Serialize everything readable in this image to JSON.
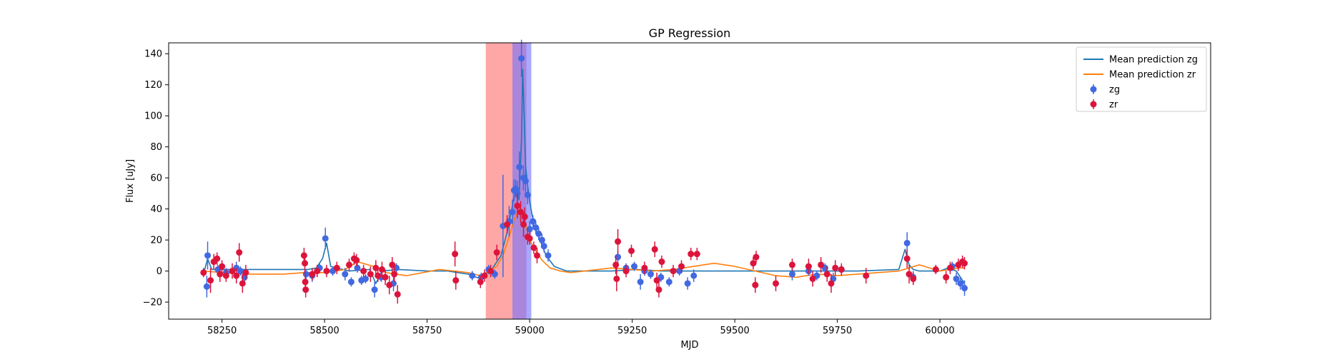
{
  "chart_data": {
    "type": "scatter",
    "title": "GP Regression",
    "xlabel": "MJD",
    "ylabel": "Flux [uJy]",
    "xlim": [
      58120,
      60660
    ],
    "ylim": [
      -31,
      147
    ],
    "xticks": [
      58250,
      58500,
      58750,
      59000,
      59250,
      59500,
      59750,
      60000
    ],
    "yticks": [
      -20,
      0,
      20,
      40,
      60,
      80,
      100,
      120,
      140
    ],
    "grid": false,
    "legend_position": "top-right",
    "shaded_regions": [
      {
        "x": [
          58893,
          58992
        ],
        "color": "#ff8a8a",
        "opacity": 0.75
      },
      {
        "x": [
          58958,
          59004
        ],
        "color": "#6f6fff",
        "opacity": 0.6
      }
    ],
    "series": [
      {
        "name": "Mean prediction zg",
        "kind": "line",
        "color": "#1f77b4",
        "x": [
          58205,
          58215,
          58225,
          58260,
          58300,
          58350,
          58400,
          58440,
          58460,
          58480,
          58495,
          58505,
          58515,
          58560,
          58610,
          58625,
          58640,
          58680,
          58750,
          58800,
          58850,
          58880,
          58910,
          58930,
          58945,
          58955,
          58962,
          58968,
          58974,
          58980,
          58983,
          58986,
          58990,
          58995,
          59000,
          59010,
          59025,
          59040,
          59060,
          59090,
          59140,
          59200,
          59260,
          59320,
          59400,
          59500,
          59600,
          59700,
          59800,
          59900,
          59915,
          59925,
          59935,
          59950,
          60000,
          60020,
          60040,
          60060
        ],
        "y": [
          -2,
          8,
          1,
          1,
          1,
          1,
          1,
          1,
          1,
          2,
          8,
          18,
          3,
          0,
          1,
          -8,
          0,
          1,
          0,
          0,
          -2,
          -5,
          2,
          10,
          25,
          38,
          48,
          52,
          46,
          85,
          130,
          105,
          68,
          55,
          45,
          30,
          20,
          10,
          3,
          0,
          0,
          0,
          1,
          0,
          0,
          0,
          0,
          0,
          0,
          1,
          14,
          4,
          1,
          0,
          0,
          2,
          0,
          -8
        ]
      },
      {
        "name": "Mean prediction zr",
        "kind": "line",
        "color": "#ff7f0e",
        "x": [
          58205,
          58250,
          58300,
          58350,
          58400,
          58450,
          58500,
          58550,
          58580,
          58620,
          58650,
          58700,
          58780,
          58850,
          58880,
          58900,
          58920,
          58935,
          58950,
          58962,
          58975,
          58985,
          58992,
          59000,
          59015,
          59030,
          59050,
          59075,
          59100,
          59200,
          59300,
          59350,
          59400,
          59450,
          59500,
          59550,
          59600,
          59650,
          59700,
          59750,
          59800,
          59900,
          59950,
          60000,
          60050,
          60060
        ],
        "y": [
          0,
          -1,
          -2,
          -2,
          -2,
          -1,
          -1,
          1,
          6,
          3,
          -1,
          -3,
          1,
          -1,
          -3,
          0,
          3,
          10,
          22,
          33,
          40,
          36,
          28,
          20,
          13,
          7,
          2,
          0,
          -1,
          2,
          0,
          1,
          3,
          5,
          3,
          0,
          -3,
          -4,
          -2,
          -3,
          -2,
          0,
          4,
          0,
          2,
          2
        ]
      },
      {
        "name": "zg",
        "kind": "errorbar",
        "color": "#4169e1",
        "points": [
          [
            58213,
            -10,
            7
          ],
          [
            58215,
            10,
            9
          ],
          [
            58240,
            1,
            3
          ],
          [
            58260,
            -1,
            3
          ],
          [
            58285,
            2,
            4
          ],
          [
            58295,
            0,
            3
          ],
          [
            58305,
            -4,
            4
          ],
          [
            58455,
            -2,
            3
          ],
          [
            58470,
            -3,
            4
          ],
          [
            58488,
            2,
            3
          ],
          [
            58502,
            21,
            7
          ],
          [
            58520,
            0,
            3
          ],
          [
            58550,
            -2,
            4
          ],
          [
            58565,
            -7,
            3
          ],
          [
            58580,
            2,
            3
          ],
          [
            58590,
            -6,
            3
          ],
          [
            58600,
            -5,
            3
          ],
          [
            58622,
            -12,
            5
          ],
          [
            58638,
            -4,
            3
          ],
          [
            58668,
            -8,
            5
          ],
          [
            58675,
            2,
            3
          ],
          [
            58860,
            -3,
            3
          ],
          [
            58882,
            -4,
            3
          ],
          [
            58900,
            1,
            3
          ],
          [
            58915,
            -2,
            3
          ],
          [
            58935,
            29,
            33
          ],
          [
            58950,
            32,
            10
          ],
          [
            58958,
            38,
            8
          ],
          [
            58962,
            52,
            7
          ],
          [
            58966,
            53,
            6
          ],
          [
            58970,
            50,
            8
          ],
          [
            58975,
            67,
            10
          ],
          [
            58980,
            137,
            12
          ],
          [
            58985,
            60,
            8
          ],
          [
            58990,
            58,
            8
          ],
          [
            58995,
            49,
            6
          ],
          [
            59000,
            27,
            5
          ],
          [
            59008,
            32,
            4
          ],
          [
            59015,
            28,
            4
          ],
          [
            59022,
            24,
            4
          ],
          [
            59030,
            20,
            4
          ],
          [
            59035,
            16,
            4
          ],
          [
            59045,
            10,
            4
          ],
          [
            59215,
            9,
            4
          ],
          [
            59235,
            2,
            3
          ],
          [
            59255,
            3,
            3
          ],
          [
            59270,
            -7,
            5
          ],
          [
            59280,
            0,
            3
          ],
          [
            59295,
            -2,
            3
          ],
          [
            59320,
            -4,
            3
          ],
          [
            59340,
            -7,
            3
          ],
          [
            59365,
            0,
            3
          ],
          [
            59385,
            -8,
            4
          ],
          [
            59400,
            -3,
            4
          ],
          [
            59640,
            -2,
            4
          ],
          [
            59680,
            0,
            3
          ],
          [
            59700,
            -3,
            3
          ],
          [
            59720,
            2,
            3
          ],
          [
            59740,
            -5,
            4
          ],
          [
            59760,
            1,
            3
          ],
          [
            59920,
            18,
            7
          ],
          [
            59935,
            -4,
            4
          ],
          [
            60030,
            3,
            3
          ],
          [
            60040,
            -5,
            4
          ],
          [
            60050,
            -8,
            4
          ],
          [
            60060,
            -11,
            5
          ]
        ]
      },
      {
        "name": "zr",
        "kind": "errorbar",
        "color": "#dc143c",
        "points": [
          [
            58205,
            -1,
            3
          ],
          [
            58222,
            -6,
            8
          ],
          [
            58230,
            6,
            5
          ],
          [
            58238,
            8,
            4
          ],
          [
            58245,
            -2,
            5
          ],
          [
            58250,
            3,
            4
          ],
          [
            58260,
            -3,
            4
          ],
          [
            58275,
            0,
            5
          ],
          [
            58285,
            -3,
            5
          ],
          [
            58292,
            12,
            6
          ],
          [
            58300,
            -8,
            6
          ],
          [
            58308,
            -1,
            5
          ],
          [
            58450,
            10,
            5
          ],
          [
            58452,
            5,
            6
          ],
          [
            58453,
            -7,
            6
          ],
          [
            58454,
            -12,
            5
          ],
          [
            58470,
            -2,
            4
          ],
          [
            58482,
            0,
            4
          ],
          [
            58505,
            0,
            4
          ],
          [
            58530,
            2,
            4
          ],
          [
            58560,
            4,
            4
          ],
          [
            58572,
            8,
            4
          ],
          [
            58578,
            7,
            4
          ],
          [
            58595,
            0,
            4
          ],
          [
            58612,
            -2,
            5
          ],
          [
            58625,
            2,
            5
          ],
          [
            58630,
            -3,
            4
          ],
          [
            58640,
            1,
            5
          ],
          [
            58648,
            -4,
            5
          ],
          [
            58658,
            -9,
            6
          ],
          [
            58665,
            4,
            5
          ],
          [
            58670,
            -2,
            5
          ],
          [
            58678,
            -15,
            6
          ],
          [
            58818,
            11,
            8
          ],
          [
            58820,
            -6,
            6
          ],
          [
            58880,
            -7,
            4
          ],
          [
            58890,
            -3,
            4
          ],
          [
            58905,
            0,
            4
          ],
          [
            58920,
            12,
            5
          ],
          [
            58945,
            30,
            6
          ],
          [
            58970,
            42,
            8
          ],
          [
            58978,
            38,
            7
          ],
          [
            58985,
            30,
            8
          ],
          [
            58988,
            35,
            6
          ],
          [
            58995,
            22,
            5
          ],
          [
            59000,
            21,
            4
          ],
          [
            59010,
            15,
            4
          ],
          [
            59018,
            10,
            5
          ],
          [
            59210,
            4,
            6
          ],
          [
            59212,
            -5,
            8
          ],
          [
            59215,
            19,
            8
          ],
          [
            59235,
            0,
            4
          ],
          [
            59248,
            13,
            4
          ],
          [
            59280,
            2,
            4
          ],
          [
            59305,
            14,
            5
          ],
          [
            59310,
            -6,
            5
          ],
          [
            59315,
            -12,
            5
          ],
          [
            59322,
            6,
            4
          ],
          [
            59350,
            0,
            4
          ],
          [
            59370,
            3,
            4
          ],
          [
            59393,
            11,
            4
          ],
          [
            59408,
            11,
            4
          ],
          [
            59545,
            5,
            4
          ],
          [
            59550,
            -9,
            5
          ],
          [
            59552,
            9,
            4
          ],
          [
            59600,
            -8,
            5
          ],
          [
            59640,
            4,
            4
          ],
          [
            59680,
            3,
            5
          ],
          [
            59690,
            -5,
            5
          ],
          [
            59710,
            4,
            5
          ],
          [
            59725,
            -2,
            5
          ],
          [
            59735,
            -8,
            6
          ],
          [
            59745,
            2,
            5
          ],
          [
            59760,
            1,
            4
          ],
          [
            59820,
            -3,
            5
          ],
          [
            59920,
            8,
            6
          ],
          [
            59925,
            -2,
            6
          ],
          [
            59935,
            -5,
            4
          ],
          [
            59990,
            1,
            3
          ],
          [
            60015,
            -4,
            4
          ],
          [
            60025,
            2,
            4
          ],
          [
            60045,
            4,
            4
          ],
          [
            60055,
            6,
            4
          ],
          [
            60060,
            5,
            4
          ]
        ]
      }
    ]
  }
}
